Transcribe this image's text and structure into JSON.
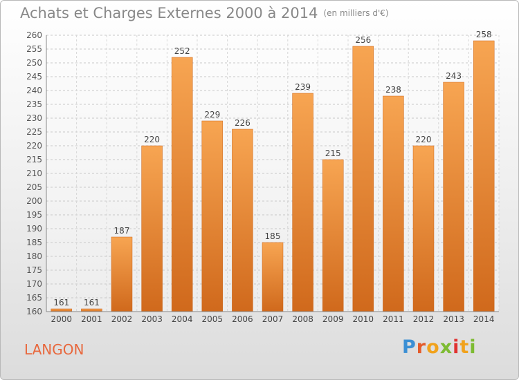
{
  "title": "Achats et Charges Externes 2000 à 2014",
  "subtitle": "(en milliers d'€)",
  "commune": "LANGON",
  "logo": {
    "text": "Proxiti",
    "colors": [
      "#3b8fd4",
      "#e45b2a",
      "#f1a21c",
      "#7dbb32",
      "#e0312f"
    ]
  },
  "chart_data": {
    "type": "bar",
    "categories": [
      "2000",
      "2001",
      "2002",
      "2003",
      "2004",
      "2005",
      "2006",
      "2007",
      "2008",
      "2009",
      "2010",
      "2011",
      "2012",
      "2013",
      "2014"
    ],
    "values": [
      161,
      161,
      187,
      220,
      252,
      229,
      226,
      185,
      239,
      215,
      256,
      238,
      220,
      243,
      258
    ],
    "xlabel": "",
    "ylabel": "",
    "ylim": [
      160,
      260
    ],
    "yticks": [
      160,
      165,
      170,
      175,
      180,
      185,
      190,
      195,
      200,
      205,
      210,
      215,
      220,
      225,
      230,
      235,
      240,
      245,
      250,
      255,
      260
    ],
    "grid": true,
    "bar_color": "#f08a2c",
    "data_labels": true
  }
}
